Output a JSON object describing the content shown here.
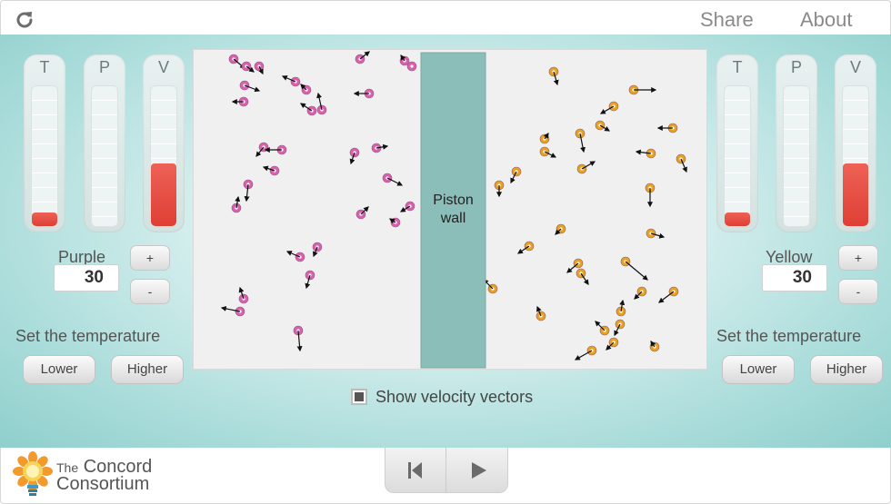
{
  "header": {
    "reload_icon": "reload-icon",
    "share_label": "Share",
    "about_label": "About"
  },
  "left_panel": {
    "gauges": [
      {
        "label": "T",
        "level": 0.1
      },
      {
        "label": "P",
        "level": 0.0
      },
      {
        "label": "V",
        "level": 0.45
      }
    ],
    "gas_name": "Purple",
    "count_value": "30",
    "plus_label": "+",
    "minus_label": "-",
    "temp_caption": "Set the temperature",
    "lower_label": "Lower",
    "higher_label": "Higher"
  },
  "right_panel": {
    "gauges": [
      {
        "label": "T",
        "level": 0.1
      },
      {
        "label": "P",
        "level": 0.0
      },
      {
        "label": "V",
        "level": 0.45
      }
    ],
    "gas_name": "Yellow",
    "count_value": "30",
    "plus_label": "+",
    "minus_label": "-",
    "temp_caption": "Set the temperature",
    "lower_label": "Lower",
    "higher_label": "Higher"
  },
  "simulation": {
    "piston_label_line1": "Piston",
    "piston_label_line2": "wall",
    "purple_color": "#d960b0",
    "yellow_color": "#e8a21e",
    "piston_color": "#8bbdb9"
  },
  "velocity_toggle": {
    "label": "Show velocity vectors",
    "checked": true
  },
  "footer": {
    "brand_line1_small": "The",
    "brand_line1": "Concord",
    "brand_line2": "Consortium",
    "logo_icon": "lightbulb-logo-icon",
    "reset_icon": "reset-to-start-icon",
    "play_icon": "play-icon"
  },
  "colors": {
    "accent_teal": "#8fcfcc",
    "gauge_fill": "#e2443a"
  }
}
